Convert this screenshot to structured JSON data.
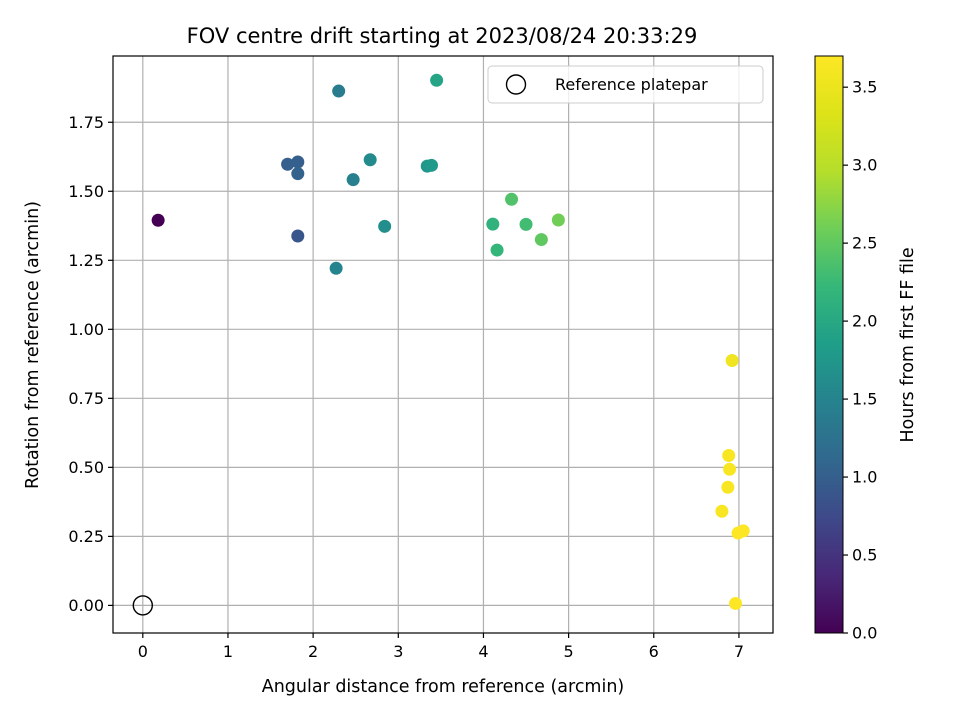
{
  "chart_data": {
    "type": "scatter",
    "title": "FOV centre drift starting at 2023/08/24 20:33:29",
    "xlabel": "Angular distance from reference (arcmin)",
    "ylabel": "Rotation from reference (arcmin)",
    "xlim": [
      -0.35,
      7.4
    ],
    "ylim": [
      -0.1,
      1.99
    ],
    "xticks": [
      "0",
      "1",
      "2",
      "3",
      "4",
      "5",
      "6",
      "7"
    ],
    "yticks": [
      "0.00",
      "0.25",
      "0.50",
      "0.75",
      "1.00",
      "1.25",
      "1.50",
      "1.75"
    ],
    "grid": true,
    "legend": {
      "placement": "top-right",
      "entries": [
        "Reference platepar"
      ]
    },
    "reference_point": {
      "x": 0,
      "y": 0,
      "label": "Reference platepar"
    },
    "colorbar": {
      "label": "Hours from first FF file",
      "colormap": "viridis",
      "range": [
        0,
        3.7
      ],
      "ticks": [
        "0.0",
        "0.5",
        "1.0",
        "1.5",
        "2.0",
        "2.5",
        "3.0",
        "3.5"
      ]
    },
    "series": [
      {
        "points": [
          {
            "x": 0.18,
            "y": 1.395,
            "hours": 0.0
          },
          {
            "x": 1.82,
            "y": 1.338,
            "hours": 0.9
          },
          {
            "x": 1.7,
            "y": 1.598,
            "hours": 1.0
          },
          {
            "x": 1.82,
            "y": 1.606,
            "hours": 1.0
          },
          {
            "x": 1.82,
            "y": 1.564,
            "hours": 1.05
          },
          {
            "x": 2.3,
            "y": 1.863,
            "hours": 1.4
          },
          {
            "x": 2.47,
            "y": 1.542,
            "hours": 1.45
          },
          {
            "x": 2.27,
            "y": 1.221,
            "hours": 1.5
          },
          {
            "x": 2.67,
            "y": 1.614,
            "hours": 1.6
          },
          {
            "x": 2.84,
            "y": 1.373,
            "hours": 1.65
          },
          {
            "x": 3.34,
            "y": 1.591,
            "hours": 1.75
          },
          {
            "x": 3.39,
            "y": 1.594,
            "hours": 1.8
          },
          {
            "x": 3.45,
            "y": 1.902,
            "hours": 1.95
          },
          {
            "x": 4.11,
            "y": 1.381,
            "hours": 2.15
          },
          {
            "x": 4.16,
            "y": 1.287,
            "hours": 2.2
          },
          {
            "x": 4.33,
            "y": 1.471,
            "hours": 2.4
          },
          {
            "x": 4.5,
            "y": 1.38,
            "hours": 2.3
          },
          {
            "x": 4.68,
            "y": 1.325,
            "hours": 2.5
          },
          {
            "x": 4.88,
            "y": 1.396,
            "hours": 2.6
          },
          {
            "x": 6.92,
            "y": 0.887,
            "hours": 3.55
          },
          {
            "x": 6.88,
            "y": 0.543,
            "hours": 3.65
          },
          {
            "x": 6.89,
            "y": 0.493,
            "hours": 3.65
          },
          {
            "x": 6.87,
            "y": 0.428,
            "hours": 3.65
          },
          {
            "x": 6.8,
            "y": 0.341,
            "hours": 3.65
          },
          {
            "x": 7.05,
            "y": 0.27,
            "hours": 3.7
          },
          {
            "x": 6.99,
            "y": 0.262,
            "hours": 3.7
          },
          {
            "x": 6.96,
            "y": 0.007,
            "hours": 3.7
          }
        ]
      }
    ]
  }
}
